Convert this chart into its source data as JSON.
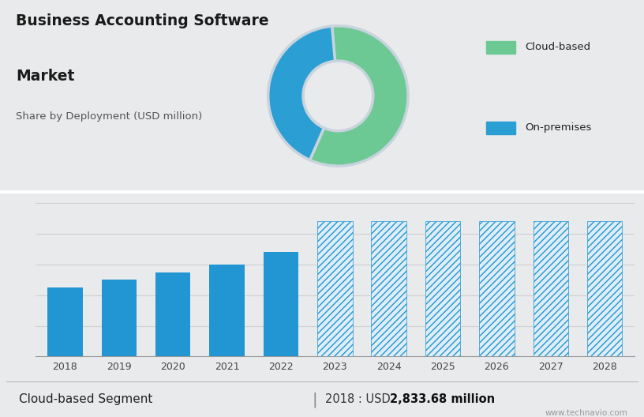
{
  "title_line1": "Business Accounting Software",
  "title_line2": "Market",
  "subtitle": "Share by Deployment (USD million)",
  "bg_top": "#c8d3de",
  "bg_bottom": "#e8eaec",
  "donut_colors": [
    "#6dc993",
    "#2b9fd4"
  ],
  "donut_labels": [
    "Cloud-based",
    "On-premises"
  ],
  "donut_sizes": [
    58,
    42
  ],
  "donut_startangle": 95,
  "bar_years": [
    "2018",
    "2019",
    "2020",
    "2021",
    "2022"
  ],
  "bar_values": [
    45,
    50,
    55,
    60,
    68
  ],
  "forecast_years": [
    "2023",
    "2024",
    "2025",
    "2026",
    "2027",
    "2028"
  ],
  "forecast_values": [
    88,
    88,
    88,
    88,
    88,
    88
  ],
  "bar_color": "#2196d3",
  "forecast_edge_color": "#2196d3",
  "forecast_face_color": "#deedf8",
  "footer_left": "Cloud-based Segment",
  "footer_right_plain": "2018 : USD ",
  "footer_right_bold": "2,833.68 million",
  "watermark": "www.technavio.com",
  "grid_color": "#d0d0d0",
  "legend_square_color_cloud": "#6dc993",
  "legend_square_color_onprem": "#2b9fd4"
}
